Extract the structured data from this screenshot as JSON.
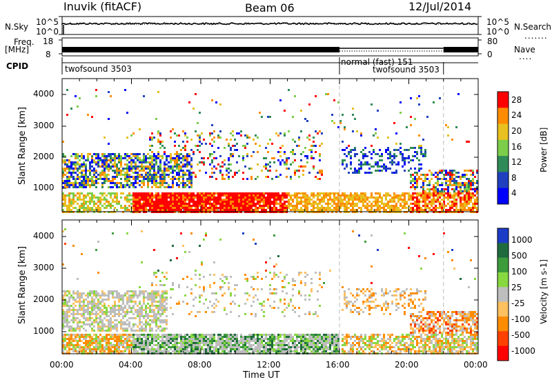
{
  "header": {
    "station": "Inuvik (fitACF)",
    "beam": "Beam 06",
    "date": "12/Jul/2014"
  },
  "status_panels": {
    "nsky_label": "N.Sky",
    "nsky_ticks": [
      "10^5",
      "10^0"
    ],
    "nsearch_label": "N.Search",
    "nsearch_ticks": [
      "10^5",
      "10^0"
    ],
    "freq_label_1": "Freq.",
    "freq_label_2": "[MHz]",
    "freq_ticks": [
      "18",
      "8"
    ],
    "nave_label": "Nave",
    "nave_ticks": [
      "80",
      "0"
    ],
    "cpid_label": "CPID",
    "cpid_segments": [
      {
        "label": "twofsound 3503",
        "start_hour": 0
      },
      {
        "label": "normal (fast) 151",
        "start_hour": 16
      },
      {
        "label": "twofsound 3503",
        "start_hour": 22
      }
    ]
  },
  "chart_data": [
    {
      "type": "heatmap",
      "name": "power",
      "ylabel": "Slant Range [km]",
      "xlabel": "",
      "ylim": [
        180,
        4600
      ],
      "yticks": [
        "1000",
        "2000",
        "3000",
        "4000"
      ],
      "colorbar_label": "Power [dB]",
      "colorbar_ticks": [
        "28",
        "24",
        "20",
        "16",
        "12",
        "8",
        "4"
      ],
      "colorbar_range": [
        0,
        30
      ],
      "colors": [
        "#0000ff",
        "#2040c0",
        "#2e8b57",
        "#7ccd4a",
        "#e8c020",
        "#ff8c00",
        "#ff0000"
      ]
    },
    {
      "type": "heatmap",
      "name": "velocity",
      "ylabel": "Slant Range [km]",
      "xlabel": "Time UT",
      "xlim": [
        0,
        24
      ],
      "xticks": [
        "00:00",
        "04:00",
        "08:00",
        "12:00",
        "16:00",
        "20:00",
        "00:00"
      ],
      "ylim": [
        180,
        4600
      ],
      "yticks": [
        "1000",
        "2000",
        "3000",
        "4000"
      ],
      "colorbar_label": "Velocity [m s-1]",
      "colorbar_ticks": [
        "1000",
        "500",
        "100",
        "25",
        "-25",
        "-100",
        "-500",
        "-1000"
      ],
      "colors": [
        "#1c3cc8",
        "#1f6b3e",
        "#3c9c3c",
        "#88d840",
        "#bebebe",
        "#ffc060",
        "#ff8c00",
        "#ff4000",
        "#ff0000"
      ]
    }
  ]
}
